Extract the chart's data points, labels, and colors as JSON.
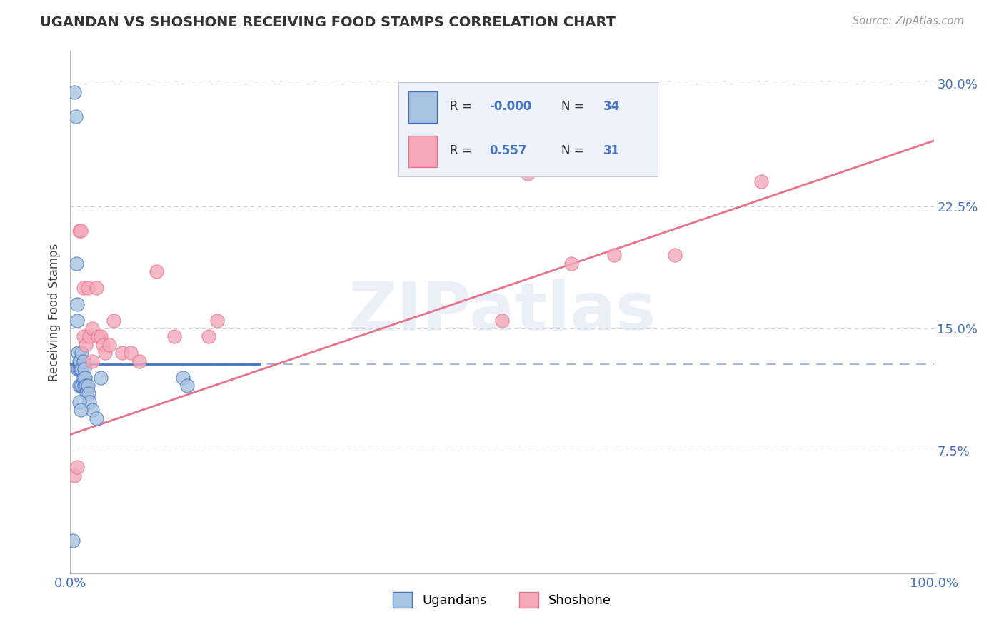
{
  "title": "UGANDAN VS SHOSHONE RECEIVING FOOD STAMPS CORRELATION CHART",
  "source": "Source: ZipAtlas.com",
  "ylabel": "Receiving Food Stamps",
  "ugandan_color": "#a8c4e0",
  "shoshone_color": "#f4a8b8",
  "ugandan_line_color": "#4472c4",
  "shoshone_line_color": "#e8728a",
  "watermark_text": "ZIPatlas",
  "ugandan_x": [
    0.003,
    0.005,
    0.006,
    0.007,
    0.008,
    0.008,
    0.009,
    0.009,
    0.01,
    0.01,
    0.01,
    0.011,
    0.012,
    0.012,
    0.013,
    0.013,
    0.014,
    0.015,
    0.015,
    0.016,
    0.016,
    0.017,
    0.018,
    0.019,
    0.02,
    0.021,
    0.022,
    0.025,
    0.03,
    0.035,
    0.13,
    0.135,
    0.01,
    0.012
  ],
  "ugandan_y": [
    0.02,
    0.295,
    0.28,
    0.19,
    0.165,
    0.155,
    0.135,
    0.125,
    0.13,
    0.125,
    0.115,
    0.13,
    0.125,
    0.115,
    0.135,
    0.125,
    0.115,
    0.13,
    0.12,
    0.125,
    0.115,
    0.12,
    0.115,
    0.11,
    0.115,
    0.11,
    0.105,
    0.1,
    0.095,
    0.12,
    0.12,
    0.115,
    0.105,
    0.1
  ],
  "shoshone_x": [
    0.005,
    0.008,
    0.01,
    0.012,
    0.015,
    0.015,
    0.018,
    0.02,
    0.022,
    0.025,
    0.025,
    0.03,
    0.032,
    0.035,
    0.038,
    0.04,
    0.045,
    0.05,
    0.06,
    0.07,
    0.08,
    0.1,
    0.12,
    0.16,
    0.17,
    0.5,
    0.53,
    0.58,
    0.63,
    0.7,
    0.8
  ],
  "shoshone_y": [
    0.06,
    0.065,
    0.21,
    0.21,
    0.175,
    0.145,
    0.14,
    0.175,
    0.145,
    0.15,
    0.13,
    0.175,
    0.145,
    0.145,
    0.14,
    0.135,
    0.14,
    0.155,
    0.135,
    0.135,
    0.13,
    0.185,
    0.145,
    0.145,
    0.155,
    0.155,
    0.245,
    0.19,
    0.195,
    0.195,
    0.24
  ],
  "yticks": [
    0.0,
    0.075,
    0.15,
    0.225,
    0.3
  ],
  "ytick_labels": [
    "",
    "7.5%",
    "15.0%",
    "22.5%",
    "30.0%"
  ],
  "xlim": [
    0.0,
    1.0
  ],
  "ylim": [
    0.0,
    0.32
  ],
  "ugandan_line_y0": 0.128,
  "ugandan_line_y1": 0.128,
  "shoshone_line_x0": 0.0,
  "shoshone_line_y0": 0.085,
  "shoshone_line_x1": 1.0,
  "shoshone_line_y1": 0.265
}
